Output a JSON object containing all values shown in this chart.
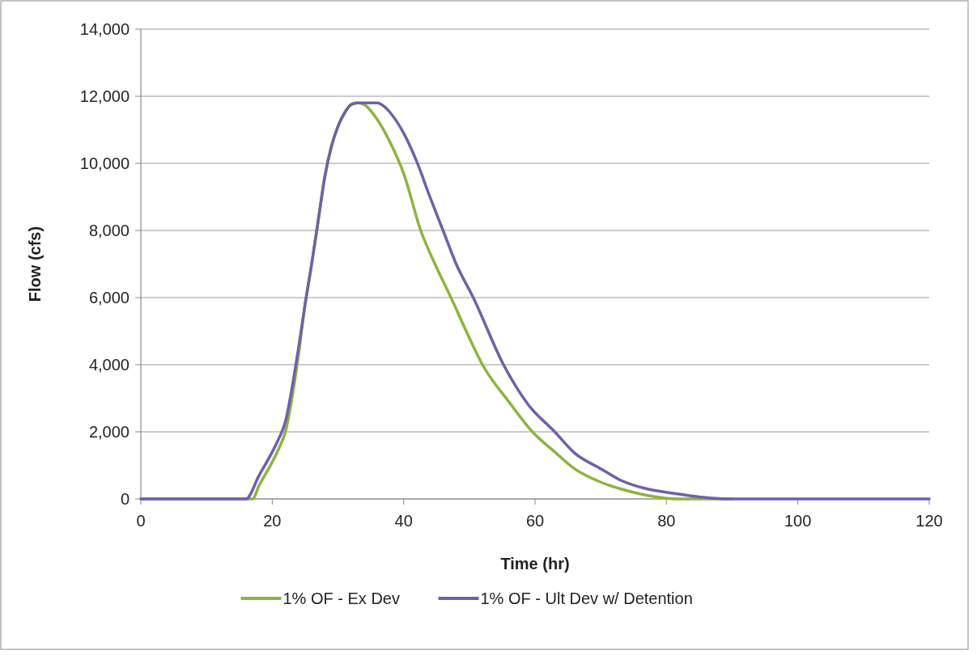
{
  "chart_data": {
    "type": "line",
    "xlabel": "Time (hr)",
    "ylabel": "Flow (cfs)",
    "xlim": [
      0,
      120
    ],
    "xticks": [
      0,
      20,
      40,
      60,
      80,
      100,
      120
    ],
    "ylim": [
      0,
      14000
    ],
    "yticks": [
      0,
      {
        "value": 2000,
        "label": "2,000"
      },
      {
        "value": 4000,
        "label": "4,000"
      },
      {
        "value": 6000,
        "label": "6,000"
      },
      {
        "value": 8000,
        "label": "8,000"
      },
      {
        "value": 10000,
        "label": "10,000"
      },
      {
        "value": 12000,
        "label": "12,000"
      },
      {
        "value": 14000,
        "label": "14,000"
      }
    ],
    "grid": "y",
    "legend": "bottom",
    "marker": "none",
    "line_style": "solid",
    "series": [
      {
        "name": "1% OF - Ex Dev",
        "color": "#8db43e",
        "x": [
          0,
          10,
          17,
          18,
          20,
          21,
          22,
          23,
          24,
          25,
          26,
          27,
          28,
          29,
          30,
          31,
          32,
          33,
          34,
          36,
          38,
          40,
          42.6,
          45,
          47.2,
          50,
          52,
          56,
          59.6,
          63,
          66,
          70,
          73,
          76,
          80,
          82,
          90
        ],
        "values": [
          0,
          0,
          0,
          400,
          1100,
          1500,
          2000,
          3000,
          4300,
          5800,
          7000,
          8300,
          9600,
          10500,
          11100,
          11500,
          11750,
          11800,
          11750,
          11300,
          10600,
          9700,
          8000,
          6900,
          6000,
          4800,
          4000,
          2900,
          2000,
          1400,
          900,
          500,
          300,
          150,
          20,
          0,
          0
        ]
      },
      {
        "name": "1% OF - Ult Dev w/ Detention",
        "color": "#7060a8",
        "x": [
          0,
          10,
          16,
          18,
          20,
          21,
          22,
          23,
          24,
          25,
          26,
          27,
          28,
          29,
          30,
          31,
          32,
          33,
          36,
          37,
          38,
          40,
          42,
          44,
          46,
          48,
          50.6,
          55.2,
          59,
          63,
          66,
          70,
          73,
          77,
          81,
          85,
          89,
          100,
          110,
          120
        ],
        "values": [
          0,
          0,
          0,
          700,
          1400,
          1800,
          2300,
          3300,
          4500,
          5800,
          7000,
          8300,
          9600,
          10500,
          11100,
          11500,
          11750,
          11800,
          11800,
          11700,
          11500,
          10900,
          10050,
          9000,
          8000,
          7000,
          6000,
          4000,
          2800,
          2000,
          1370,
          900,
          560,
          300,
          170,
          60,
          0,
          0,
          0,
          0
        ]
      }
    ]
  }
}
